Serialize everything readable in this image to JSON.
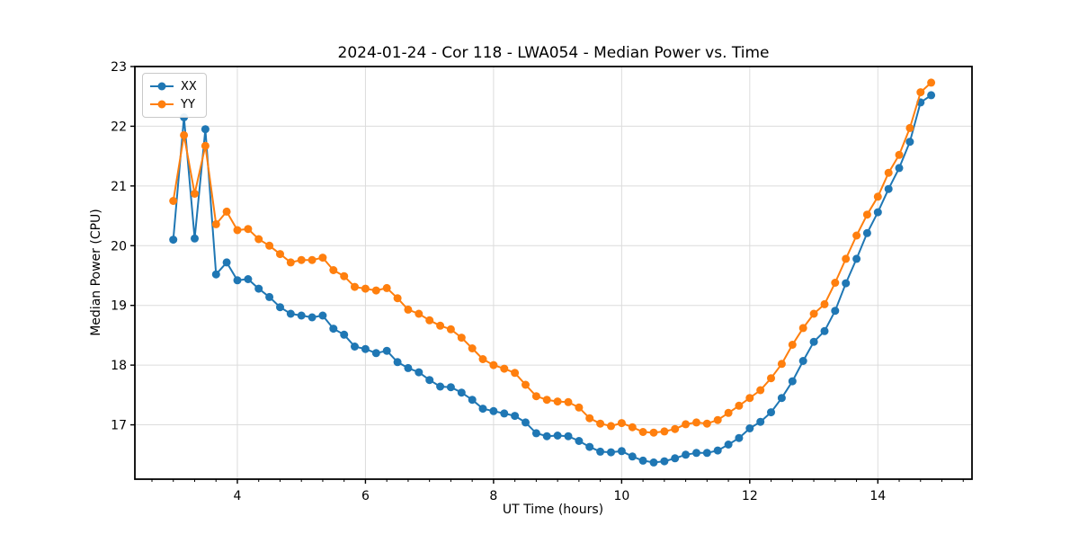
{
  "chart_data": {
    "type": "line",
    "title": "2024-01-24 - Cor 118 - LWA054 - Median Power vs. Time",
    "xlabel": "UT Time (hours)",
    "ylabel": "Median Power (CPU)",
    "xlim": [
      2.4,
      15.47
    ],
    "ylim": [
      16.09,
      23.0
    ],
    "x_ticks": [
      4,
      6,
      8,
      10,
      12,
      14
    ],
    "y_ticks": [
      17,
      18,
      19,
      20,
      21,
      22,
      23
    ],
    "x_minor_step": 0.33333,
    "grid": true,
    "grid_color": "#dcdcdc",
    "axis_color": "#000000",
    "legend_position": "upper left",
    "x": [
      3.0,
      3.167,
      3.333,
      3.5,
      3.667,
      3.833,
      4.0,
      4.167,
      4.333,
      4.5,
      4.667,
      4.833,
      5.0,
      5.167,
      5.333,
      5.5,
      5.667,
      5.833,
      6.0,
      6.167,
      6.333,
      6.5,
      6.667,
      6.833,
      7.0,
      7.167,
      7.333,
      7.5,
      7.667,
      7.833,
      8.0,
      8.167,
      8.333,
      8.5,
      8.667,
      8.833,
      9.0,
      9.167,
      9.333,
      9.5,
      9.667,
      9.833,
      10.0,
      10.167,
      10.333,
      10.5,
      10.667,
      10.833,
      11.0,
      11.167,
      11.333,
      11.5,
      11.667,
      11.833,
      12.0,
      12.167,
      12.333,
      12.5,
      12.667,
      12.833,
      13.0,
      13.167,
      13.333,
      13.5,
      13.667,
      13.833,
      14.0,
      14.167,
      14.333,
      14.5,
      14.667,
      14.833
    ],
    "series": [
      {
        "name": "XX",
        "color": "#1f77b4",
        "values": [
          20.1,
          22.15,
          20.12,
          21.95,
          19.52,
          19.72,
          19.42,
          19.44,
          19.28,
          19.14,
          18.97,
          18.86,
          18.83,
          18.8,
          18.83,
          18.61,
          18.51,
          18.31,
          18.27,
          18.2,
          18.24,
          18.05,
          17.95,
          17.88,
          17.75,
          17.64,
          17.63,
          17.54,
          17.42,
          17.27,
          17.23,
          17.19,
          17.15,
          17.04,
          16.86,
          16.81,
          16.82,
          16.81,
          16.73,
          16.63,
          16.55,
          16.54,
          16.56,
          16.47,
          16.4,
          16.37,
          16.39,
          16.44,
          16.5,
          16.53,
          16.53,
          16.57,
          16.67,
          16.78,
          16.94,
          17.05,
          17.21,
          17.45,
          17.73,
          18.07,
          18.39,
          18.57,
          18.91,
          19.37,
          19.78,
          20.21,
          20.56,
          20.95,
          21.3,
          21.74,
          22.4,
          22.52
        ]
      },
      {
        "name": "YY",
        "color": "#ff7f0e",
        "values": [
          20.75,
          21.85,
          20.87,
          21.67,
          20.36,
          20.57,
          20.26,
          20.28,
          20.11,
          20.0,
          19.86,
          19.72,
          19.76,
          19.76,
          19.8,
          19.59,
          19.49,
          19.31,
          19.28,
          19.25,
          19.29,
          19.12,
          18.93,
          18.86,
          18.75,
          18.66,
          18.6,
          18.46,
          18.28,
          18.1,
          18.0,
          17.94,
          17.87,
          17.67,
          17.48,
          17.42,
          17.39,
          17.38,
          17.29,
          17.11,
          17.02,
          16.98,
          17.03,
          16.96,
          16.88,
          16.87,
          16.89,
          16.93,
          17.01,
          17.04,
          17.02,
          17.08,
          17.2,
          17.32,
          17.45,
          17.58,
          17.78,
          18.02,
          18.34,
          18.62,
          18.86,
          19.02,
          19.38,
          19.78,
          20.17,
          20.52,
          20.82,
          21.22,
          21.52,
          21.97,
          22.57,
          22.73
        ]
      }
    ]
  }
}
